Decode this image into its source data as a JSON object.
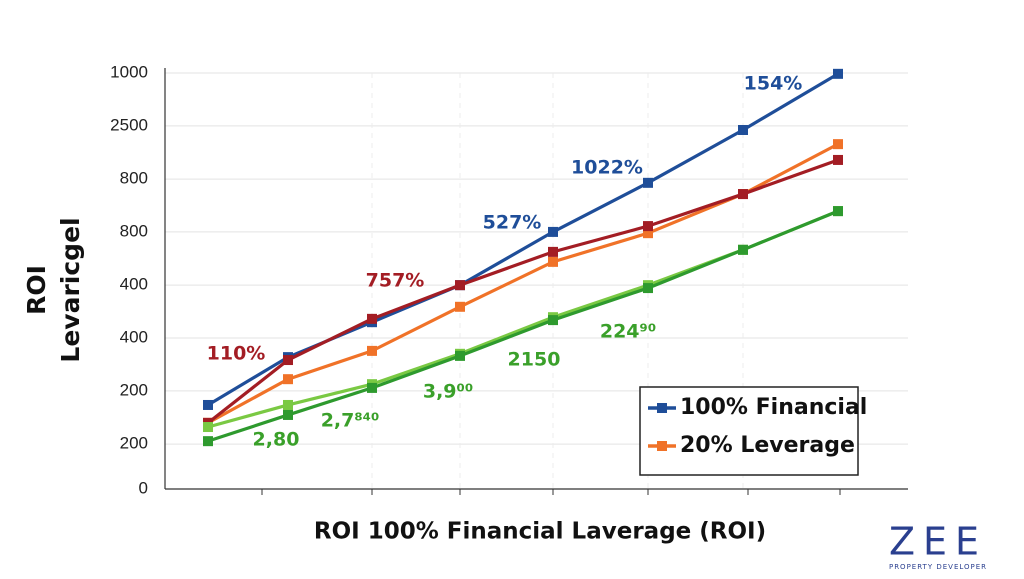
{
  "chart_data": {
    "type": "line",
    "y_label": [
      "ROI",
      "Levaricgel"
    ],
    "x_label": "ROI 100% Financial Laverage (ROI)",
    "categories": [
      null,
      null,
      null,
      null,
      null,
      null,
      null,
      null
    ],
    "ylim": [
      0,
      1000
    ],
    "yticks": [
      0,
      {
        "value": 108,
        "label": "200"
      },
      {
        "value": 236,
        "label": "200"
      },
      {
        "value": 363,
        "label": "400"
      },
      {
        "value": 490,
        "label": "400"
      },
      {
        "value": 618,
        "label": "800"
      },
      {
        "value": 745,
        "label": "800"
      },
      {
        "value": 873,
        "label": "2500"
      },
      1000
    ],
    "grid": true,
    "series": [
      {
        "name": "100% Financial",
        "color": "#1f4e99",
        "values": [
          202,
          317,
          401,
          490,
          618,
          736,
          863,
          998
        ]
      },
      {
        "name": "20% Leverage",
        "color": "#f07228",
        "values": [
          159,
          264,
          332,
          438,
          546,
          615,
          709,
          829
        ]
      },
      {
        "color": "#a31d24",
        "values": [
          159,
          310,
          409,
          490,
          570,
          632,
          709,
          791
        ]
      },
      {
        "color": "#7ac943",
        "values": [
          149,
          202,
          252,
          325,
          413,
          490,
          575,
          668
        ]
      },
      {
        "color": "#2e9a2e",
        "values": [
          115,
          178,
          243,
          320,
          406,
          483,
          575,
          668
        ]
      }
    ],
    "annotations": [
      {
        "text": "154%",
        "color": "#1f4e99"
      },
      {
        "text": "1022%",
        "color": "#1f4e99"
      },
      {
        "text": "527%",
        "color": "#1f4e99"
      },
      {
        "text": "757%",
        "color": "#a31d24"
      },
      {
        "text": "110%",
        "color": "#a31d24"
      },
      {
        "text": "2,80",
        "color": "#3aa02a"
      },
      {
        "text": "2,7⁸⁴⁰",
        "color": "#3aa02a"
      },
      {
        "text": "3,9⁰⁰",
        "color": "#3aa02a"
      },
      {
        "text": "2150",
        "color": "#3aa02a"
      },
      {
        "text": "224⁹⁰",
        "color": "#3aa02a"
      }
    ],
    "legend": "lower right"
  },
  "logo": {
    "mark": "ZEE",
    "tagline": "PROPERTY DEVELOPER"
  }
}
